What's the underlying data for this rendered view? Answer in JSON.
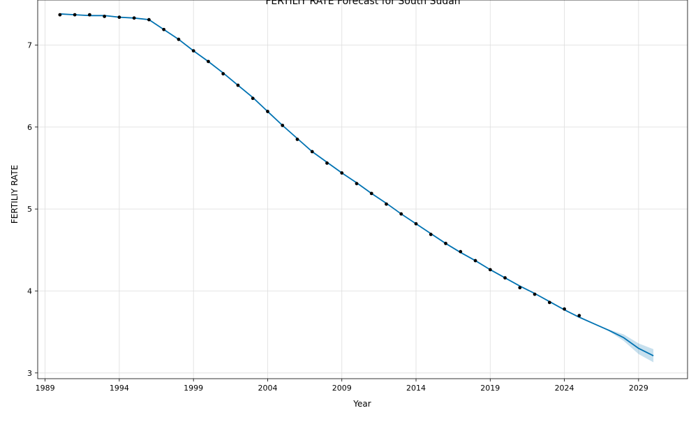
{
  "chart_data": {
    "type": "line",
    "title": "FERTILIY RATE Forecast for South Sudan",
    "xlabel": "Year",
    "ylabel": "FERTILIY RATE",
    "xlim": [
      1988.5,
      2032.3
    ],
    "ylim": [
      2.93,
      7.55
    ],
    "grid": true,
    "x_ticks": [
      1989,
      1994,
      1999,
      2004,
      2009,
      2014,
      2019,
      2024,
      2029
    ],
    "y_ticks": [
      3,
      4,
      5,
      6,
      7
    ],
    "observed": {
      "x": [
        1990,
        1991,
        1992,
        1993,
        1994,
        1995,
        1996,
        1997,
        1998,
        1999,
        2000,
        2001,
        2002,
        2003,
        2004,
        2005,
        2006,
        2007,
        2008,
        2009,
        2010,
        2011,
        2012,
        2013,
        2014,
        2015,
        2016,
        2017,
        2018,
        2019,
        2020,
        2021,
        2022,
        2023,
        2024,
        2025
      ],
      "y": [
        7.37,
        7.37,
        7.37,
        7.35,
        7.34,
        7.33,
        7.31,
        7.19,
        7.07,
        6.93,
        6.8,
        6.65,
        6.51,
        6.35,
        6.19,
        6.02,
        5.85,
        5.7,
        5.56,
        5.44,
        5.31,
        5.19,
        5.06,
        4.94,
        4.82,
        4.69,
        4.58,
        4.48,
        4.37,
        4.26,
        4.16,
        4.04,
        3.96,
        3.86,
        3.78,
        3.7
      ]
    },
    "forecast": {
      "x": [
        1990,
        1991,
        1992,
        1993,
        1994,
        1995,
        1996,
        1997,
        1998,
        1999,
        2000,
        2001,
        2002,
        2003,
        2004,
        2005,
        2006,
        2007,
        2008,
        2009,
        2010,
        2011,
        2012,
        2013,
        2014,
        2015,
        2016,
        2017,
        2018,
        2019,
        2020,
        2021,
        2022,
        2023,
        2024,
        2025,
        2026,
        2027,
        2028,
        2029,
        2030
      ],
      "y": [
        7.38,
        7.37,
        7.36,
        7.36,
        7.34,
        7.33,
        7.31,
        7.19,
        7.07,
        6.93,
        6.8,
        6.66,
        6.51,
        6.36,
        6.19,
        6.02,
        5.86,
        5.7,
        5.57,
        5.44,
        5.32,
        5.19,
        5.07,
        4.94,
        4.82,
        4.7,
        4.58,
        4.47,
        4.37,
        4.26,
        4.16,
        4.06,
        3.97,
        3.87,
        3.77,
        3.68,
        3.6,
        3.52,
        3.43,
        3.3,
        3.21
      ],
      "lower": [
        7.38,
        7.37,
        7.36,
        7.36,
        7.34,
        7.33,
        7.31,
        7.19,
        7.07,
        6.93,
        6.8,
        6.66,
        6.51,
        6.36,
        6.19,
        6.02,
        5.86,
        5.7,
        5.57,
        5.44,
        5.32,
        5.19,
        5.07,
        4.94,
        4.82,
        4.7,
        4.58,
        4.47,
        4.37,
        4.26,
        4.16,
        4.06,
        3.97,
        3.87,
        3.77,
        3.68,
        3.6,
        3.51,
        3.39,
        3.23,
        3.13
      ],
      "upper": [
        7.38,
        7.37,
        7.36,
        7.36,
        7.34,
        7.33,
        7.31,
        7.19,
        7.07,
        6.93,
        6.8,
        6.66,
        6.51,
        6.36,
        6.19,
        6.02,
        5.86,
        5.7,
        5.57,
        5.44,
        5.32,
        5.19,
        5.07,
        4.94,
        4.82,
        4.7,
        4.58,
        4.47,
        4.37,
        4.26,
        4.16,
        4.06,
        3.97,
        3.87,
        3.77,
        3.68,
        3.6,
        3.53,
        3.47,
        3.36,
        3.29
      ]
    },
    "colors": {
      "line": "#0072b2",
      "band": "#0072b2",
      "points": "#000000",
      "grid": "#dddddd"
    }
  }
}
